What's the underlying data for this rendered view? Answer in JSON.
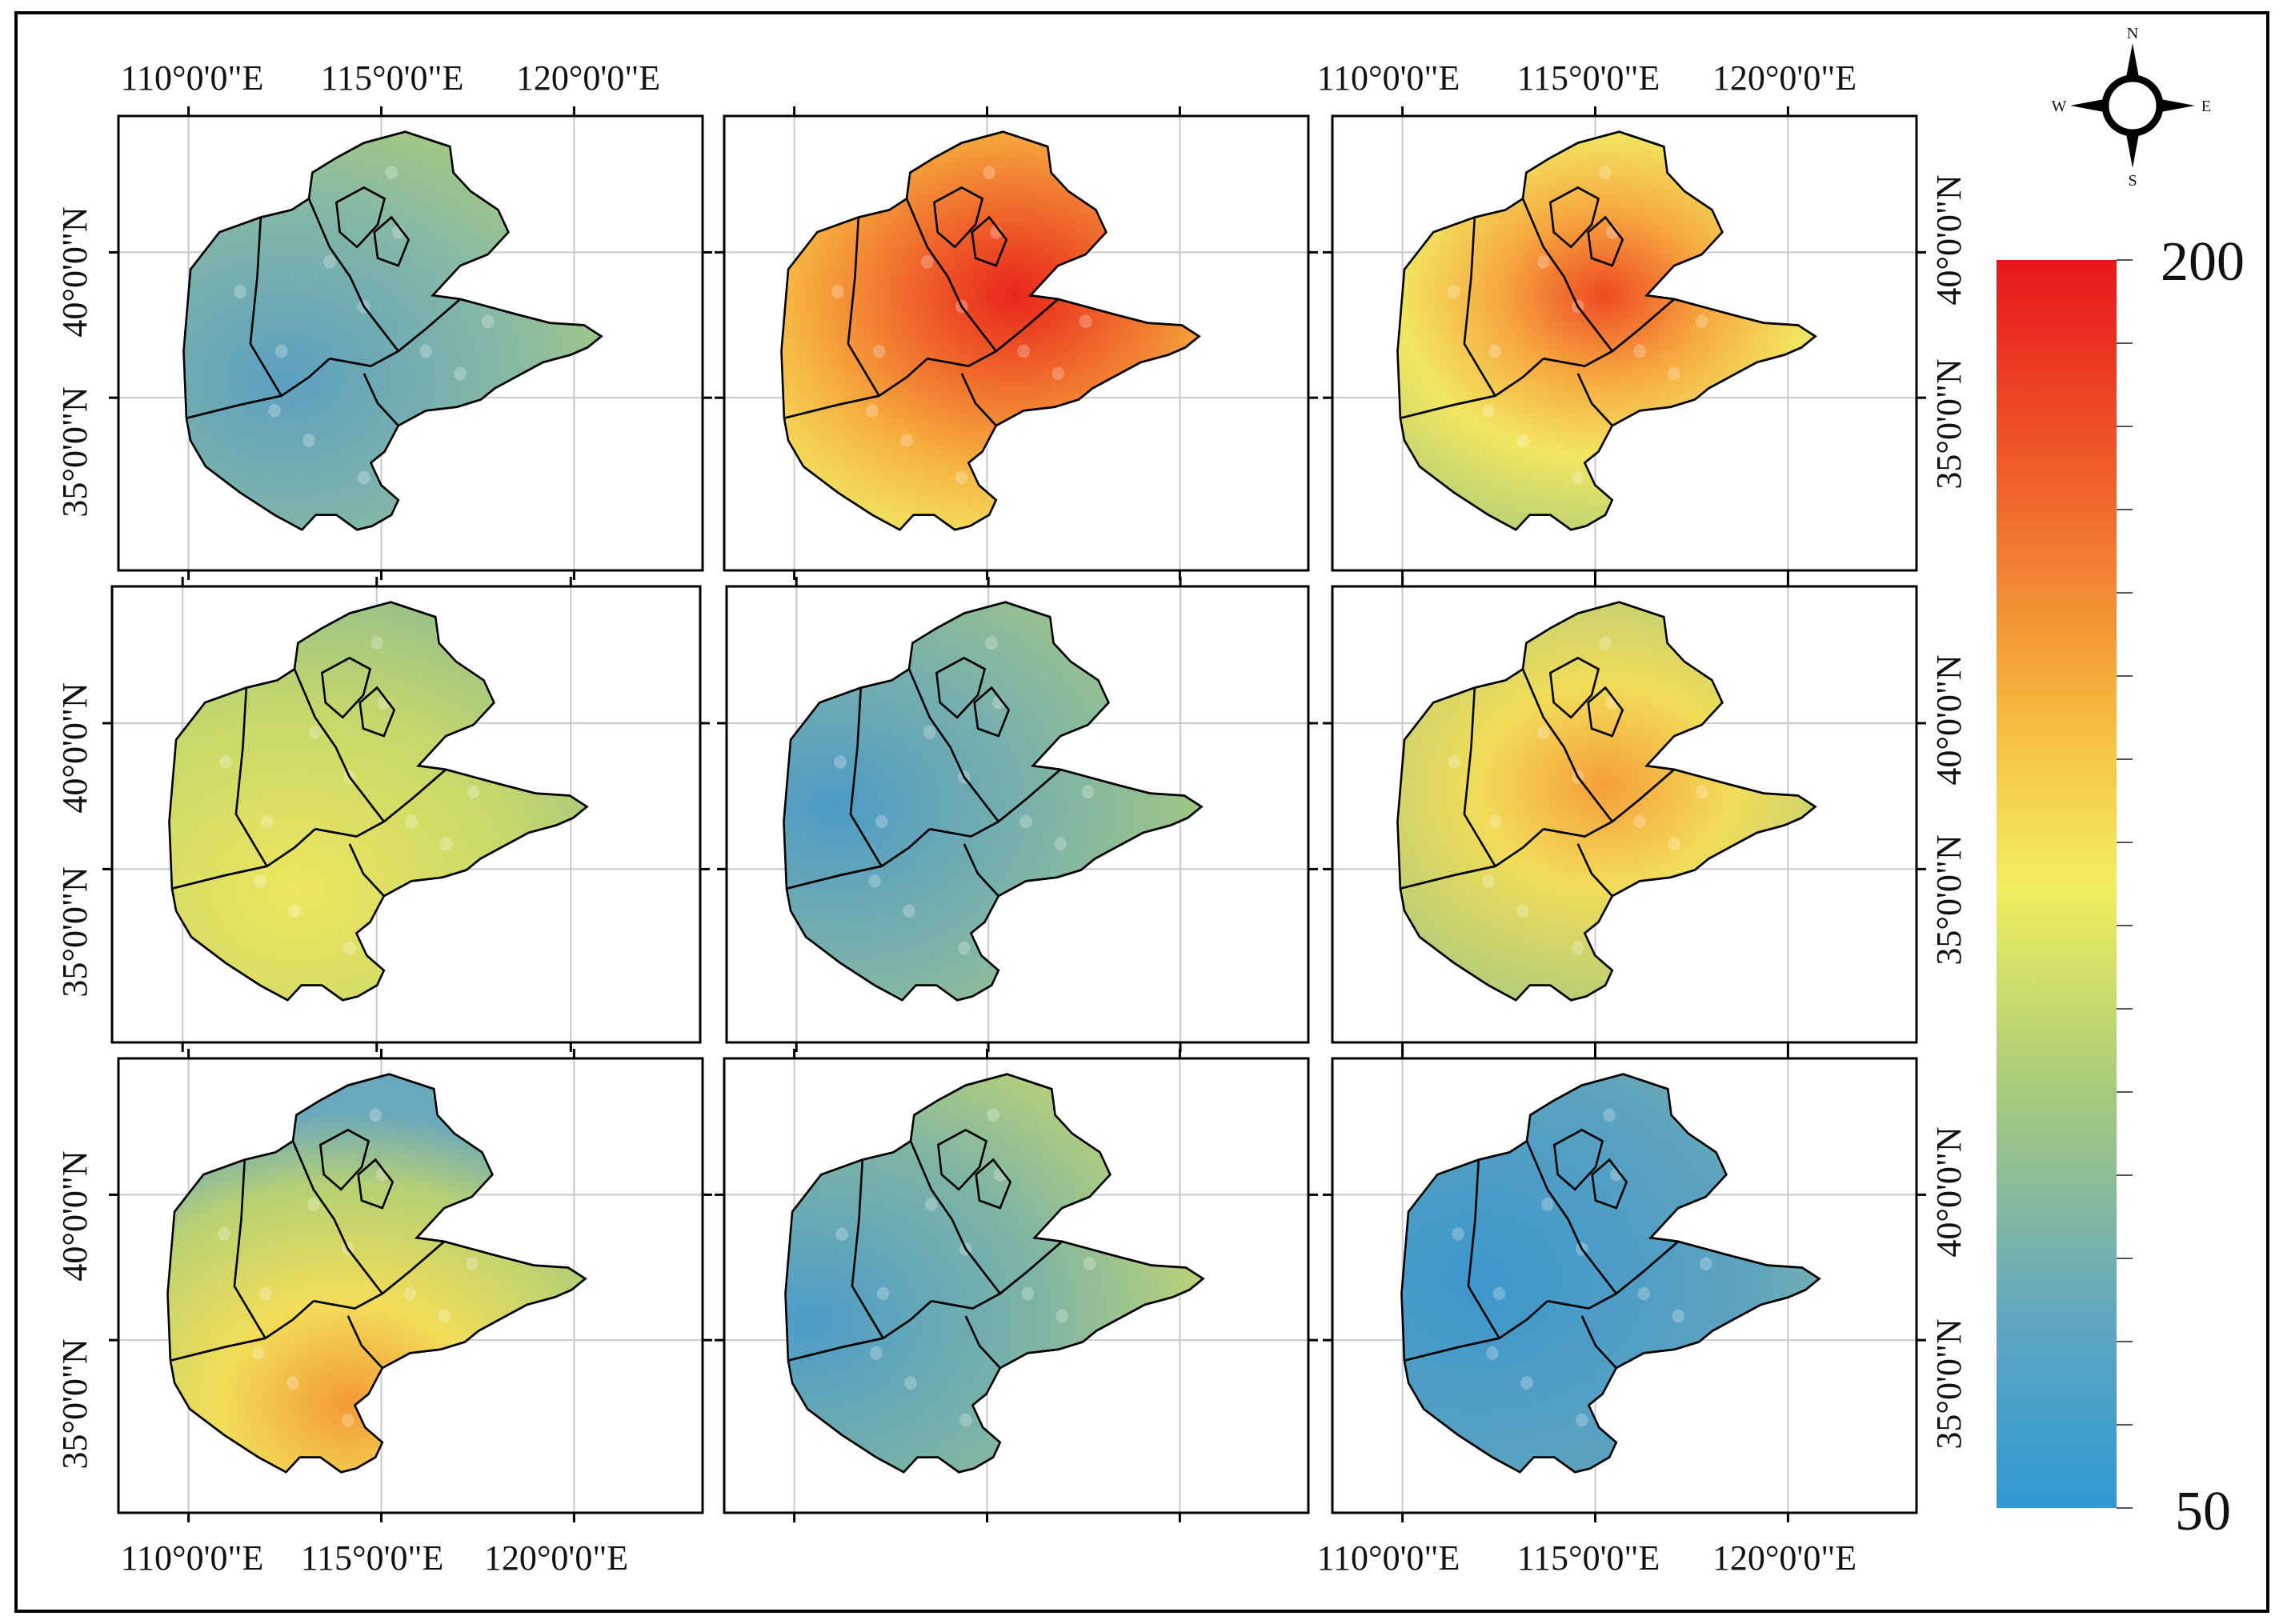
{
  "figure": {
    "top_lon_labels_left": [
      "110°0'0\"E",
      "115°0'0\"E",
      "120°0'0\"E"
    ],
    "top_lon_labels_right": [
      "110°0'0\"E",
      "115°0'0\"E",
      "120°0'0\"E"
    ],
    "bottom_lon_labels_left": [
      "110°0'0\"E",
      "115°0'0\"E",
      "120°0'0\"E"
    ],
    "bottom_lon_labels_right": [
      "110°0'0\"E",
      "115°0'0\"E",
      "120°0'0\"E"
    ],
    "left_lat_labels": [
      "40°0'0\"N",
      "35°0'0\"N"
    ],
    "right_lat_labels": [
      "40°0'0\"N",
      "35°0'0\"N"
    ]
  },
  "compass": {
    "n": "N",
    "s": "S",
    "e": "E",
    "w": "W"
  },
  "legend": {
    "max_label": "200",
    "min_label": "50",
    "colors": [
      "#e8161c",
      "#f06a2c",
      "#f6c040",
      "#f2ee5e",
      "#a9cc7a",
      "#5fa6c2",
      "#2f98d2"
    ]
  },
  "panels": [
    {
      "theme": "low-blue-green"
    },
    {
      "theme": "high-red-orange"
    },
    {
      "theme": "yellow-orange-hotspot"
    },
    {
      "theme": "green-yellow"
    },
    {
      "theme": "blue-green"
    },
    {
      "theme": "yellow-orange-center"
    },
    {
      "theme": "yellow-south-hotspot"
    },
    {
      "theme": "green-blue"
    },
    {
      "theme": "blue-low"
    }
  ]
}
